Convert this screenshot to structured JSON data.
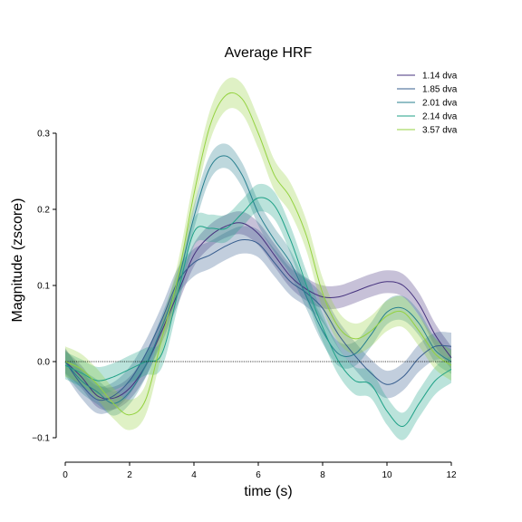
{
  "chart_data": {
    "type": "line",
    "title": "Average HRF",
    "xlabel": "time (s)",
    "ylabel": "Magnitude (zscore)",
    "xlim": [
      0,
      12
    ],
    "ylim": [
      -0.1,
      0.3
    ],
    "xticks": [
      "0",
      "2",
      "4",
      "6",
      "8",
      "10",
      "12"
    ],
    "yticks": [
      "−0.1",
      "0.0",
      "0.1",
      "0.2",
      "0.3"
    ],
    "xtick_values": [
      0,
      2,
      4,
      6,
      8,
      10,
      12
    ],
    "ytick_values": [
      -0.1,
      0.0,
      0.1,
      0.2,
      0.3
    ],
    "reference_line": 0,
    "grid": false,
    "legend_position": "top-right",
    "series": [
      {
        "name": "1.14 dva",
        "color": "#46327e",
        "x": [
          0,
          0.5,
          1,
          1.5,
          2,
          2.5,
          3,
          3.5,
          4,
          4.5,
          5,
          5.5,
          6,
          6.5,
          7,
          7.5,
          8,
          8.5,
          9,
          9.5,
          10,
          10.5,
          11,
          11.5,
          12
        ],
        "y": [
          0.0,
          -0.02,
          -0.045,
          -0.048,
          -0.035,
          -0.005,
          0.04,
          0.09,
          0.14,
          0.165,
          0.178,
          0.182,
          0.168,
          0.14,
          0.112,
          0.095,
          0.085,
          0.085,
          0.092,
          0.1,
          0.105,
          0.1,
          0.075,
          0.035,
          0.005
        ],
        "band": 0.015
      },
      {
        "name": "1.85 dva",
        "color": "#365c8d",
        "x": [
          0,
          0.5,
          1,
          1.5,
          2,
          2.5,
          3,
          3.5,
          4,
          4.5,
          5,
          5.5,
          6,
          6.5,
          7,
          7.5,
          8,
          8.5,
          9,
          9.5,
          10,
          10.5,
          11,
          11.5,
          12
        ],
        "y": [
          0.0,
          -0.03,
          -0.05,
          -0.045,
          -0.025,
          0.01,
          0.055,
          0.105,
          0.13,
          0.14,
          0.152,
          0.16,
          0.155,
          0.13,
          0.105,
          0.09,
          0.07,
          0.035,
          0.008,
          -0.015,
          -0.03,
          -0.02,
          0.005,
          0.02,
          0.02
        ],
        "band": 0.018
      },
      {
        "name": "2.01 dva",
        "color": "#277f8e",
        "x": [
          0,
          0.5,
          1,
          1.5,
          2,
          2.5,
          3,
          3.5,
          4,
          4.5,
          5,
          5.5,
          6,
          6.5,
          7,
          7.5,
          8,
          8.5,
          9,
          9.5,
          10,
          10.5,
          11,
          11.5,
          12
        ],
        "y": [
          0.0,
          -0.025,
          -0.04,
          -0.055,
          -0.04,
          -0.005,
          0.045,
          0.105,
          0.19,
          0.255,
          0.27,
          0.245,
          0.195,
          0.16,
          0.13,
          0.085,
          0.04,
          0.01,
          0.01,
          0.035,
          0.065,
          0.07,
          0.05,
          0.015,
          0.0
        ],
        "band": 0.016
      },
      {
        "name": "2.14 dva",
        "color": "#1fa187",
        "x": [
          0,
          0.5,
          1,
          1.5,
          2,
          2.5,
          3,
          3.5,
          4,
          4.5,
          5,
          5.5,
          6,
          6.5,
          7,
          7.5,
          8,
          8.5,
          9,
          9.5,
          10,
          10.5,
          11,
          11.5,
          12
        ],
        "y": [
          -0.005,
          -0.015,
          -0.025,
          -0.02,
          -0.01,
          0.0,
          0.01,
          0.09,
          0.17,
          0.175,
          0.175,
          0.195,
          0.215,
          0.205,
          0.16,
          0.1,
          0.045,
          0.0,
          -0.025,
          -0.03,
          -0.065,
          -0.085,
          -0.055,
          -0.025,
          -0.01
        ],
        "band": 0.018
      },
      {
        "name": "3.57 dva",
        "color": "#94d240",
        "x": [
          0,
          0.5,
          1,
          1.5,
          2,
          2.5,
          3,
          3.5,
          4,
          4.5,
          5,
          5.5,
          6,
          6.5,
          7,
          7.5,
          8,
          8.5,
          9,
          9.5,
          10,
          10.5,
          11,
          11.5,
          12
        ],
        "y": [
          0.0,
          -0.01,
          -0.03,
          -0.055,
          -0.07,
          -0.05,
          0.03,
          0.11,
          0.22,
          0.31,
          0.35,
          0.345,
          0.3,
          0.245,
          0.215,
          0.165,
          0.09,
          0.045,
          0.03,
          0.04,
          0.06,
          0.065,
          0.04,
          0.01,
          -0.005
        ],
        "band": 0.02
      }
    ]
  }
}
